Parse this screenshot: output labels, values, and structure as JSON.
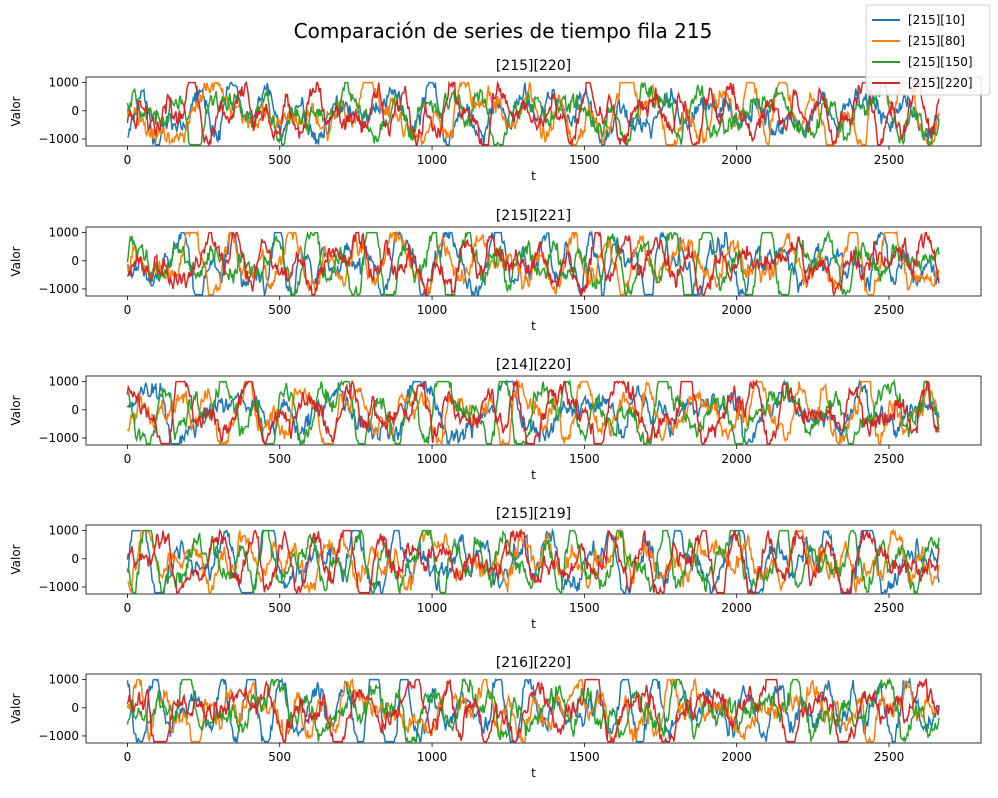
{
  "figure": {
    "suptitle": "Comparación de series de tiempo fila 215"
  },
  "legend": {
    "placement": "top-right",
    "entries": [
      {
        "label": "[215][10]",
        "color": "#1f77b4"
      },
      {
        "label": "[215][80]",
        "color": "#ff7f0e"
      },
      {
        "label": "[215][150]",
        "color": "#2ca02c"
      },
      {
        "label": "[215][220]",
        "color": "#d62728"
      }
    ]
  },
  "chart_data": [
    {
      "type": "line",
      "title": "[215][220]",
      "xlabel": "t",
      "ylabel": "Valor",
      "xlim": [
        -136,
        2802
      ],
      "ylim": [
        -1250,
        1200
      ],
      "xticks": [
        0,
        500,
        1000,
        1500,
        2000,
        2500
      ],
      "yticks": [
        -1000,
        0,
        1000
      ],
      "series_names": [
        "[215][10]",
        "[215][80]",
        "[215][150]",
        "[215][220]"
      ],
      "t_range": [
        0,
        2666
      ],
      "amplitude_range": [
        -1200,
        1000
      ]
    },
    {
      "type": "line",
      "title": "[215][221]",
      "xlabel": "t",
      "ylabel": "Valor",
      "xlim": [
        -136,
        2802
      ],
      "ylim": [
        -1250,
        1200
      ],
      "xticks": [
        0,
        500,
        1000,
        1500,
        2000,
        2500
      ],
      "yticks": [
        -1000,
        0,
        1000
      ],
      "series_names": [
        "[215][10]",
        "[215][80]",
        "[215][150]",
        "[215][220]"
      ],
      "t_range": [
        0,
        2666
      ],
      "amplitude_range": [
        -1200,
        1000
      ]
    },
    {
      "type": "line",
      "title": "[214][220]",
      "xlabel": "t",
      "ylabel": "Valor",
      "xlim": [
        -136,
        2802
      ],
      "ylim": [
        -1250,
        1200
      ],
      "xticks": [
        0,
        500,
        1000,
        1500,
        2000,
        2500
      ],
      "yticks": [
        -1000,
        0,
        1000
      ],
      "series_names": [
        "[215][10]",
        "[215][80]",
        "[215][150]",
        "[215][220]"
      ],
      "t_range": [
        0,
        2666
      ],
      "amplitude_range": [
        -1200,
        1000
      ]
    },
    {
      "type": "line",
      "title": "[215][219]",
      "xlabel": "t",
      "ylabel": "Valor",
      "xlim": [
        -136,
        2802
      ],
      "ylim": [
        -1250,
        1200
      ],
      "xticks": [
        0,
        500,
        1000,
        1500,
        2000,
        2500
      ],
      "yticks": [
        -1000,
        0,
        1000
      ],
      "series_names": [
        "[215][10]",
        "[215][80]",
        "[215][150]",
        "[215][220]"
      ],
      "t_range": [
        0,
        2666
      ],
      "amplitude_range": [
        -1200,
        1000
      ]
    },
    {
      "type": "line",
      "title": "[216][220]",
      "xlabel": "t",
      "ylabel": "Valor",
      "xlim": [
        -136,
        2802
      ],
      "ylim": [
        -1250,
        1200
      ],
      "xticks": [
        0,
        500,
        1000,
        1500,
        2000,
        2500
      ],
      "yticks": [
        -1000,
        0,
        1000
      ],
      "series_names": [
        "[215][10]",
        "[215][80]",
        "[215][150]",
        "[215][220]"
      ],
      "t_range": [
        0,
        2666
      ],
      "amplitude_range": [
        -1200,
        1000
      ]
    }
  ]
}
